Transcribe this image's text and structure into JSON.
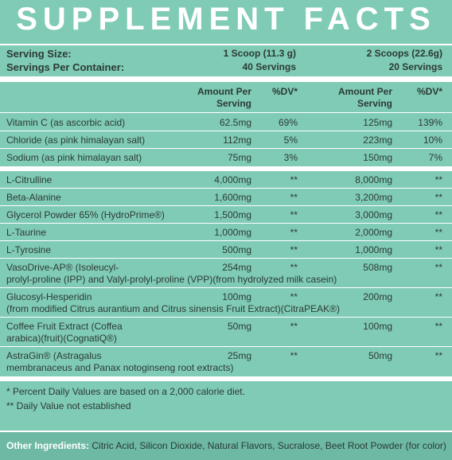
{
  "header": {
    "title": "SUPPLEMENT FACTS"
  },
  "serving": [
    [
      "Serving Size:",
      "1 Scoop (11.3 g)",
      "2 Scoops (22.6g)"
    ],
    [
      "Servings Per Container:",
      "40 Servings",
      "20 Servings"
    ]
  ],
  "columns": [
    "Amount Per Serving",
    "%DV*",
    "Amount Per Serving",
    "%DV*"
  ],
  "groups": [
    {
      "rows": [
        {
          "name": [
            "Vitamin C (as ascorbic acid)"
          ],
          "amount1": "62.5mg",
          "dv1": "69%",
          "amount2": "125mg",
          "dv2": "139%"
        },
        {
          "name": [
            "Chloride (as pink himalayan salt)"
          ],
          "amount1": "112mg",
          "dv1": "5%",
          "amount2": "223mg",
          "dv2": "10%"
        },
        {
          "name": [
            "Sodium (as pink himalayan salt)"
          ],
          "amount1": "75mg",
          "dv1": "3%",
          "amount2": "150mg",
          "dv2": "7%"
        }
      ]
    },
    {
      "rows": [
        {
          "name": [
            "L-Citrulline"
          ],
          "amount1": "4,000mg",
          "dv1": "**",
          "amount2": "8,000mg",
          "dv2": "**"
        },
        {
          "name": [
            "Beta-Alanine"
          ],
          "amount1": "1,600mg",
          "dv1": "**",
          "amount2": "3,200mg",
          "dv2": "**"
        },
        {
          "name": [
            "Glycerol Powder 65% (HydroPrime®)"
          ],
          "amount1": "1,500mg",
          "dv1": "**",
          "amount2": "3,000mg",
          "dv2": "**"
        },
        {
          "name": [
            "L-Taurine"
          ],
          "amount1": "1,000mg",
          "dv1": "**",
          "amount2": "2,000mg",
          "dv2": "**"
        },
        {
          "name": [
            "L-Tyrosine"
          ],
          "amount1": "500mg",
          "dv1": "**",
          "amount2": "1,000mg",
          "dv2": "**"
        },
        {
          "name": [
            "VasoDrive-AP® (Isoleucyl-",
            "prolyl-proline (IPP) and Valyl-prolyl-proline (VPP)(from hydrolyzed milk casein)"
          ],
          "amount1": "254mg",
          "dv1": "**",
          "amount2": "508mg",
          "dv2": "**"
        },
        {
          "name": [
            "Glucosyl-Hesperidin",
            "(from modified Citrus aurantium and Citrus sinensis Fruit Extract)(CitraPEAK®)"
          ],
          "amount1": "100mg",
          "dv1": "**",
          "amount2": "200mg",
          "dv2": "**"
        },
        {
          "name": [
            "Coffee Fruit Extract (Coffea",
            "arabica)(fruit)(CognatiQ®)"
          ],
          "amount1": "50mg",
          "dv1": "**",
          "amount2": "100mg",
          "dv2": "**"
        },
        {
          "name": [
            "AstraGin® (Astragalus",
            "membranaceus and Panax notoginseng root extracts)"
          ],
          "amount1": "25mg",
          "dv1": "**",
          "amount2": "50mg",
          "dv2": "**"
        }
      ]
    }
  ],
  "footnotes": [
    "* Percent Daily Values are based on a 2,000 calorie diet.",
    "** Daily Value not established"
  ],
  "other_ingredients": {
    "label": "Other Ingredients:",
    "text": "Citric Acid, Silicon Dioxide, Natural Flavors, Sucralose, Beet Root Powder (for color)"
  }
}
